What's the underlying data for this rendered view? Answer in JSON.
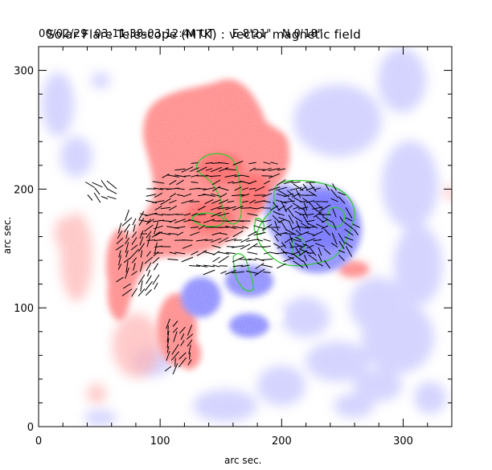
{
  "header": {
    "title": "Solar Flare Telescope (MTK) : vector magnetic field",
    "date_time": "00/02/29  03:11:38-03:12:44 UT",
    "position": "E 8'21\"   N 0'18\""
  },
  "chart_data": {
    "type": "heatmap",
    "description_units": "arc sec.",
    "xlabel": "arc sec.",
    "ylabel": "arc sec.",
    "xlim": [
      0,
      340
    ],
    "ylim": [
      0,
      320
    ],
    "x_ticks": [
      0,
      100,
      200,
      300
    ],
    "y_ticks": [
      0,
      100,
      200,
      300
    ],
    "colors": {
      "positive_polarity": "#ff8a8a",
      "negative_polarity": "#8c8cff",
      "contour": "#33cc33",
      "vectors": "#000000"
    }
  }
}
